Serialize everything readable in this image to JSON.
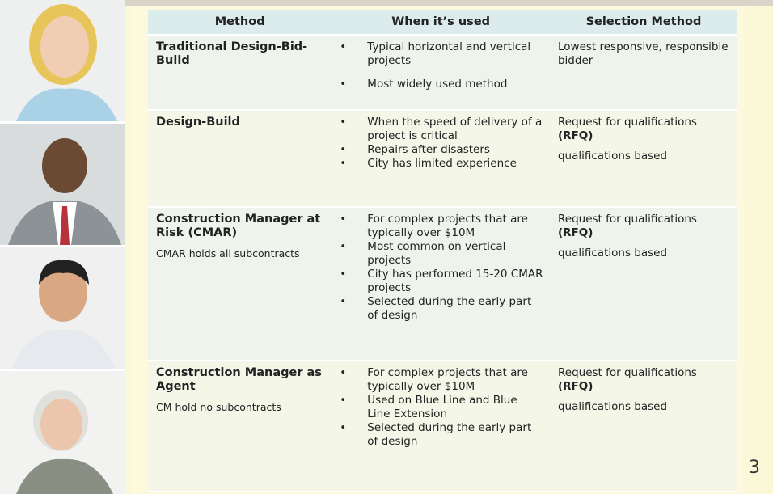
{
  "table": {
    "header": [
      "Method",
      "When it’s used",
      "Selection Method"
    ],
    "rows": [
      {
        "method": {
          "title": "Traditional Design-Bid-Build"
        },
        "uses": [
          "Typical horizontal and vertical projects",
          "Most widely used method"
        ],
        "selection": [
          {
            "text": "Lowest responsive, responsible bidder"
          }
        ]
      },
      {
        "method": {
          "title": "Design-Build"
        },
        "uses": [
          "When the speed of delivery of a project is critical",
          "Repairs after disasters",
          "City has limited experience"
        ],
        "selection": [
          {
            "text": "Request for qualifications",
            "bold": "(RFQ)"
          },
          {
            "text": "qualifications based"
          }
        ]
      },
      {
        "method": {
          "title": "Construction Manager at Risk (CMAR)",
          "note": "CMAR holds all subcontracts"
        },
        "uses": [
          "For complex projects that are typically over $10M",
          "Most common on vertical projects",
          "City has performed 15-20 CMAR projects",
          "Selected during the early part of design"
        ],
        "selection": [
          {
            "text": "Request for qualifications",
            "bold": "(RFQ)"
          },
          {
            "text": "qualifications based"
          }
        ]
      },
      {
        "method": {
          "title": "Construction Manager as Agent",
          "note": "CM hold no subcontracts"
        },
        "uses": [
          "For complex projects that are typically over $10M",
          "Used on Blue Line and Blue Line Extension",
          "Selected during the early part of design"
        ],
        "selection": [
          {
            "text": "Request for qualifications",
            "bold": "(RFQ)"
          },
          {
            "text": "qualifications based"
          }
        ]
      }
    ]
  },
  "page_number": "3"
}
